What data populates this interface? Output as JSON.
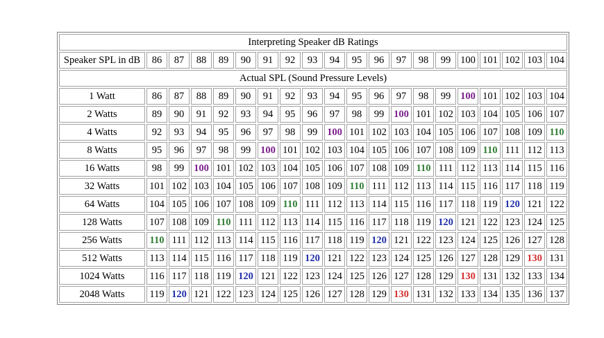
{
  "title": "Interpreting Speaker dB Ratings",
  "spl_label": "Speaker SPL in dB",
  "spl_values": [
    86,
    87,
    88,
    89,
    90,
    91,
    92,
    93,
    94,
    95,
    96,
    97,
    98,
    99,
    100,
    101,
    102,
    103,
    104
  ],
  "subtitle": "Actual SPL (Sound Pressure Levels)",
  "rows": [
    {
      "label": "1 Watt",
      "start": 86
    },
    {
      "label": "2 Watts",
      "start": 89
    },
    {
      "label": "4 Watts",
      "start": 92
    },
    {
      "label": "8 Watts",
      "start": 95
    },
    {
      "label": "16 Watts",
      "start": 98
    },
    {
      "label": "32 Watts",
      "start": 101
    },
    {
      "label": "64 Watts",
      "start": 104
    },
    {
      "label": "128 Watts",
      "start": 107
    },
    {
      "label": "256 Watts",
      "start": 110
    },
    {
      "label": "512 Watts",
      "start": 113
    },
    {
      "label": "1024 Watts",
      "start": 116
    },
    {
      "label": "2048 Watts",
      "start": 119
    }
  ],
  "highlight_colors": {
    "100": "#7b1f8c",
    "110": "#2e7d32",
    "120": "#1f2fa8",
    "130": "#d32f2f"
  }
}
